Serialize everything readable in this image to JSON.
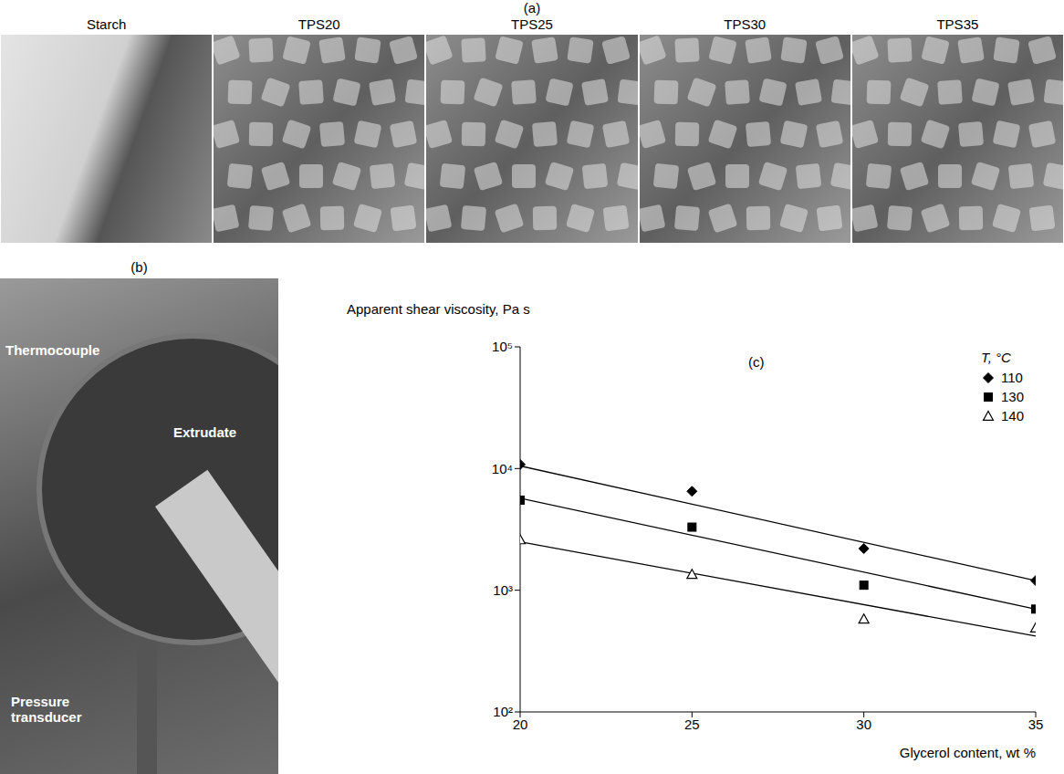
{
  "panel_a": {
    "label": "(a)",
    "images": [
      "Starch",
      "TPS20",
      "TPS25",
      "TPS30",
      "TPS35"
    ]
  },
  "panel_b": {
    "label": "(b)",
    "annotations": [
      "Thermocouple",
      "Extrudate",
      "Pressure transducer"
    ]
  },
  "chart_data": {
    "type": "scatter",
    "label": "(c)",
    "y_label": "Apparent shear viscosity, Pa s",
    "x_label": "Glycerol content, wt %",
    "legend_title": "T, °C",
    "legend": "top right",
    "log": "y",
    "grid": false,
    "xlim": [
      20,
      35
    ],
    "xticks": [
      20,
      25,
      30,
      35
    ],
    "ylim": [
      100,
      100000
    ],
    "yticks": [
      {
        "value": 100,
        "label": "10²"
      },
      {
        "value": 1000,
        "label": "10³"
      },
      {
        "value": 10000,
        "label": "10⁴"
      },
      {
        "value": 100000,
        "label": "10⁵"
      }
    ],
    "x": [
      20,
      25,
      30,
      35
    ],
    "fit_x": [
      20,
      35
    ],
    "series": [
      {
        "name": "110",
        "color": "#000000",
        "marker": "diamond",
        "values": [
          10800,
          6500,
          2200,
          1200
        ],
        "fit_values": [
          10500,
          1200
        ]
      },
      {
        "name": "130",
        "color": "#000000",
        "marker": "square",
        "values": [
          5500,
          3300,
          1100,
          700
        ],
        "fit_values": [
          5700,
          700
        ]
      },
      {
        "name": "140",
        "color": "#000000",
        "marker": "triangle-open",
        "values": [
          2600,
          1350,
          580,
          490
        ],
        "fit_values": [
          2500,
          420
        ]
      }
    ]
  }
}
